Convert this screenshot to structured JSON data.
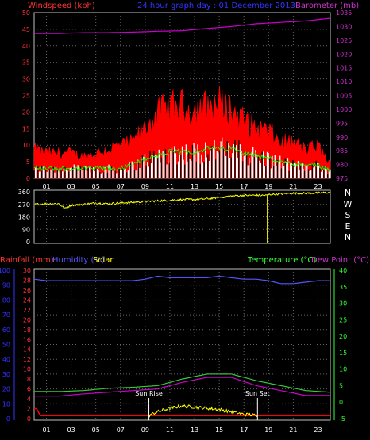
{
  "header": {
    "left": "Windspeed (kph)",
    "center": "24 hour graph day : 01 December 2013",
    "right": "Barometer (mb)"
  },
  "colors": {
    "bg": "#000000",
    "frame": "#c0c0c0",
    "wind": "#ff0000",
    "gust": "#ff0000",
    "avg": "#00ff00",
    "white": "#ffffff",
    "baro": "#cc00cc",
    "dir": "#ffff00",
    "hum": "#5555ff",
    "temp": "#33cc33",
    "dew": "#cc00cc",
    "rain": "#ff0000",
    "solar": "#ffff00",
    "text_red": "#ff3333",
    "text_blue": "#3333ff",
    "text_magenta": "#cc33cc",
    "text_green": "#33ff33"
  },
  "chart_data": [
    {
      "type": "line",
      "title": "",
      "x_ticks": [
        "01",
        "03",
        "05",
        "07",
        "09",
        "11",
        "13",
        "15",
        "17",
        "19",
        "21",
        "23"
      ],
      "ylabel_left": "Windspeed (kph)",
      "ylabel_right": "Barometer (mb)",
      "ylim_left": [
        0,
        50
      ],
      "left_ticks": [
        "0",
        "5",
        "10",
        "15",
        "20",
        "25",
        "30",
        "35",
        "40",
        "45",
        "50"
      ],
      "ylim_right": [
        975,
        1035
      ],
      "right_ticks": [
        "975",
        "980",
        "985",
        "990",
        "995",
        "1000",
        "1005",
        "1010",
        "1015",
        "1020",
        "1025",
        "1030",
        "1035"
      ],
      "series": [
        {
          "name": "Barometer (mb)",
          "hours": [
            0,
            2,
            4,
            6,
            8,
            10,
            12,
            14,
            16,
            17,
            18,
            20,
            22,
            24
          ],
          "values": [
            1027.5,
            1027.5,
            1027.8,
            1027.8,
            1028,
            1028.3,
            1028.5,
            1029.3,
            1030,
            1030.5,
            1031,
            1031.5,
            1032,
            1033
          ]
        },
        {
          "name": "Gust",
          "hours": [
            0,
            1,
            2,
            3,
            4,
            5,
            6,
            7,
            8,
            9,
            10,
            11,
            12,
            13,
            14,
            15,
            16,
            17,
            18,
            19,
            20,
            21,
            22,
            23,
            24
          ],
          "values": [
            8,
            7,
            7,
            7,
            6,
            7,
            8,
            9,
            10,
            14,
            18,
            20,
            20,
            19,
            20,
            21,
            19,
            16,
            14,
            13,
            10,
            10,
            8,
            9,
            4
          ]
        },
        {
          "name": "Average",
          "hours": [
            0,
            1,
            2,
            3,
            4,
            5,
            6,
            7,
            8,
            9,
            10,
            11,
            12,
            13,
            14,
            15,
            16,
            17,
            18,
            19,
            20,
            21,
            22,
            23,
            24
          ],
          "values": [
            3,
            3,
            3,
            3,
            3,
            3,
            3,
            3,
            4,
            6,
            7,
            8,
            8,
            8,
            9,
            9,
            9,
            8,
            7,
            6,
            5,
            4,
            4,
            4,
            2
          ]
        }
      ]
    },
    {
      "type": "line",
      "title": "",
      "left_ticks": [
        "0",
        "90",
        "180",
        "270",
        "360"
      ],
      "ylim": [
        0,
        360
      ],
      "right_labels": [
        "N",
        "W",
        "S",
        "E",
        "N"
      ],
      "series": [
        {
          "name": "Direction",
          "hours": [
            0,
            1,
            2,
            2.5,
            3,
            4,
            5,
            6,
            7,
            8,
            9,
            10,
            11,
            12,
            13,
            14,
            15,
            16,
            17,
            18,
            18.9,
            19,
            20,
            21,
            22,
            23,
            24
          ],
          "values": [
            270,
            275,
            275,
            240,
            265,
            270,
            280,
            275,
            280,
            285,
            290,
            295,
            300,
            305,
            305,
            310,
            320,
            330,
            335,
            335,
            335,
            340,
            345,
            350,
            350,
            352,
            355
          ]
        }
      ]
    },
    {
      "type": "line",
      "title": "",
      "labels_left": {
        "rain": "Rainfall (mm)",
        "hum": "Humidity (%)",
        "solar": "Solar"
      },
      "labels_right": {
        "temp": "Temperature (°C)",
        "dew": "Dew Point (°C)"
      },
      "hum_ticks": [
        "0",
        "10",
        "20",
        "30",
        "40",
        "50",
        "60",
        "70",
        "80",
        "90",
        "100"
      ],
      "rain_ticks": [
        "0",
        "2",
        "4",
        "6",
        "8",
        "10",
        "12",
        "14",
        "16",
        "18",
        "20",
        "22",
        "24",
        "26",
        "28",
        "30"
      ],
      "temp_ticks": [
        "-5",
        "0",
        "5",
        "10",
        "15",
        "20",
        "25",
        "30",
        "35",
        "40"
      ],
      "ylim_temp": [
        -5,
        40
      ],
      "ylim_hum": [
        0,
        100
      ],
      "annotations": [
        "Sun Rise",
        "Sun Set"
      ],
      "sunrise_hour": 9.3,
      "sunset_hour": 18.1,
      "series": [
        {
          "name": "Humidity (%)",
          "hours": [
            0,
            1,
            2,
            3,
            4,
            5,
            6,
            7,
            8,
            9,
            10,
            11,
            12,
            13,
            14,
            15,
            16,
            17,
            18,
            19,
            20,
            21,
            22,
            23,
            24
          ],
          "values": [
            94,
            93,
            93,
            93,
            93,
            93,
            93,
            93,
            93,
            94,
            96,
            95,
            95,
            95,
            95,
            96,
            95,
            94,
            94,
            93,
            91,
            91,
            92,
            93,
            93
          ]
        },
        {
          "name": "Temperature (°C)",
          "hours": [
            0,
            2,
            4,
            6,
            8,
            10,
            12,
            14,
            16,
            18,
            20,
            22,
            24
          ],
          "values": [
            3.2,
            3.2,
            3.5,
            4.2,
            4.5,
            5,
            7,
            8.5,
            8.5,
            6.5,
            5,
            3.5,
            3
          ]
        },
        {
          "name": "Dew Point (°C)",
          "hours": [
            0,
            2,
            4,
            6,
            8,
            10,
            12,
            14,
            16,
            18,
            20,
            22,
            24
          ],
          "values": [
            1.8,
            1.8,
            2.5,
            3,
            3.5,
            4,
            6,
            7.5,
            7.5,
            5,
            3.5,
            2,
            2
          ]
        },
        {
          "name": "Rainfall (mm)",
          "hours": [
            0,
            0.2,
            0.5,
            1,
            24
          ],
          "values": [
            2,
            2,
            0.6,
            0.6,
            0.6
          ]
        },
        {
          "name": "Solar",
          "hours": [
            9.3,
            10,
            11,
            12,
            13,
            14,
            15,
            16,
            17,
            18.1
          ],
          "values": [
            0,
            1.5,
            3,
            4,
            3.5,
            3,
            2.5,
            1.5,
            0.5,
            0
          ]
        }
      ]
    }
  ]
}
